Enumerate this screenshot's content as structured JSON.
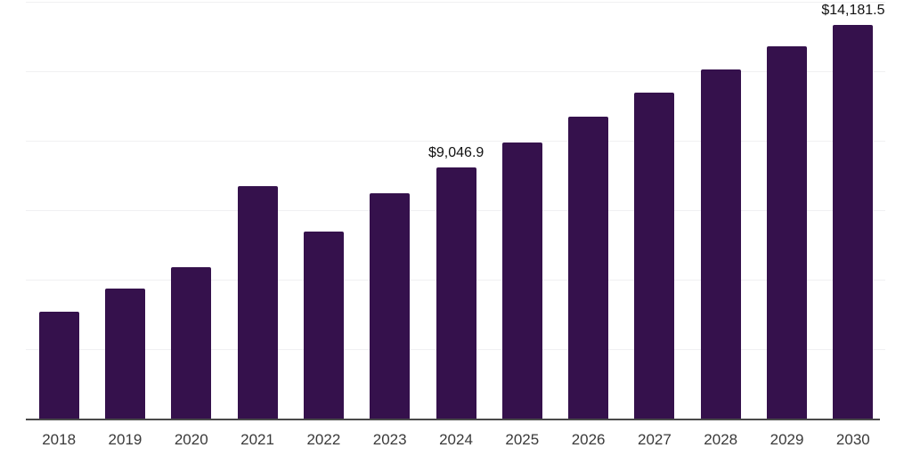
{
  "chart_data": {
    "type": "bar",
    "title": "",
    "xlabel": "",
    "ylabel": "",
    "categories": [
      "2018",
      "2019",
      "2020",
      "2021",
      "2022",
      "2023",
      "2024",
      "2025",
      "2026",
      "2027",
      "2028",
      "2029",
      "2030"
    ],
    "values": [
      3835,
      4685,
      5460,
      8370,
      6720,
      8100,
      9046.9,
      9945,
      10870,
      11720,
      12565,
      13385,
      14181.5
    ],
    "value_labels": [
      "",
      "",
      "",
      "",
      "",
      "",
      "$9,046.9",
      "",
      "",
      "",
      "",
      "",
      "$14,181.5"
    ],
    "ylim": [
      0,
      15000
    ],
    "gridline_step": 2500,
    "gridline_values": [
      2500,
      5000,
      7500,
      10000,
      12500,
      15000
    ],
    "grid": "horizontal-only",
    "legend": "none",
    "y_tick_labels_visible": false,
    "colors": {
      "bar": "#35114C",
      "axis_line": "#4A4A4A",
      "gridline": "#F0F0F2",
      "x_axis_label": "#3A3A3A",
      "value_label": "#111111",
      "background": "#FFFFFF"
    }
  }
}
